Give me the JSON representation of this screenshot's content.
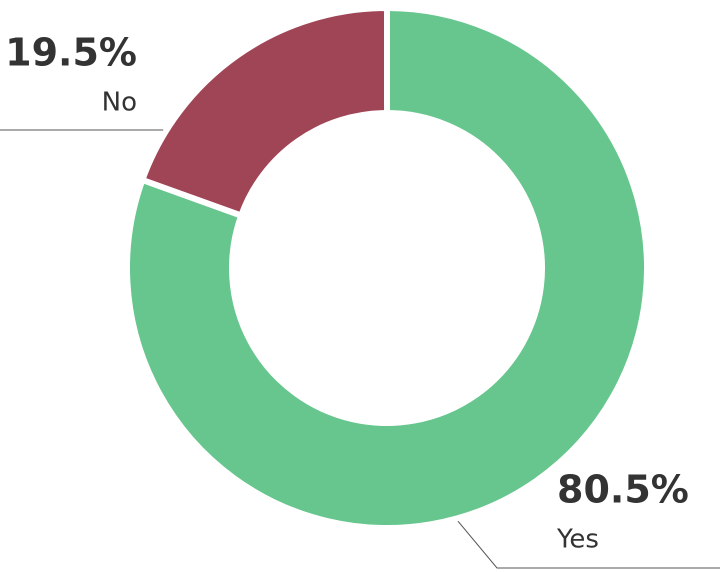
{
  "chart_data": {
    "type": "donut",
    "categories": [
      "Yes",
      "No"
    ],
    "values": [
      80.5,
      19.5
    ],
    "value_labels": [
      "80.5%",
      "19.5%"
    ],
    "colors": [
      "#66c68d",
      "#a04556"
    ]
  }
}
